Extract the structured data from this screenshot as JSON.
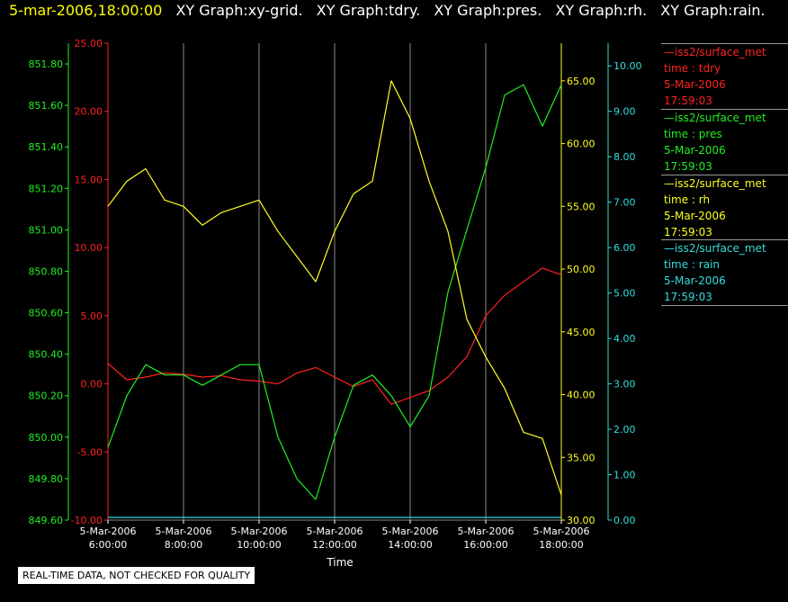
{
  "header": {
    "timestamp": "5-mar-2006,18:00:00",
    "graph_titles": [
      "XY Graph:xy-grid.",
      "XY Graph:tdry.",
      "XY Graph:pres.",
      "XY Graph:rh.",
      "XY Graph:rain."
    ]
  },
  "legend": [
    {
      "source": "iss2/surface_met",
      "field": "time : tdry",
      "date": "5-Mar-2006",
      "time": "17:59:03",
      "color": "#ff2020"
    },
    {
      "source": "iss2/surface_met",
      "field": "time : pres",
      "date": "5-Mar-2006",
      "time": "17:59:03",
      "color": "#22ee22"
    },
    {
      "source": "iss2/surface_met",
      "field": "time : rh",
      "date": "5-Mar-2006",
      "time": "17:59:03",
      "color": "#ffff22"
    },
    {
      "source": "iss2/surface_met",
      "field": "time : rain",
      "date": "5-Mar-2006",
      "time": "17:59:03",
      "color": "#33dddd"
    }
  ],
  "note": "REAL-TIME DATA, NOT CHECKED FOR QUALITY",
  "chart_data": {
    "type": "line",
    "xlabel": "Time",
    "x_ticks": [
      {
        "date": "5-Mar-2006",
        "time": "6:00:00"
      },
      {
        "date": "5-Mar-2006",
        "time": "8:00:00"
      },
      {
        "date": "5-Mar-2006",
        "time": "10:00:00"
      },
      {
        "date": "5-Mar-2006",
        "time": "12:00:00"
      },
      {
        "date": "5-Mar-2006",
        "time": "14:00:00"
      },
      {
        "date": "5-Mar-2006",
        "time": "16:00:00"
      },
      {
        "date": "5-Mar-2006",
        "time": "18:00:00"
      }
    ],
    "xlim": [
      "5-Mar-2006 6:00:00",
      "5-Mar-2006 18:00:00"
    ],
    "x": [
      "6:00",
      "6:30",
      "7:00",
      "7:30",
      "8:00",
      "8:30",
      "9:00",
      "9:30",
      "10:00",
      "10:30",
      "11:00",
      "11:30",
      "12:00",
      "12:30",
      "13:00",
      "13:30",
      "14:00",
      "14:30",
      "15:00",
      "15:30",
      "16:00",
      "16:30",
      "17:00",
      "17:30",
      "18:00"
    ],
    "grid": "vertical",
    "axes": [
      {
        "id": "tdry",
        "side": "left-inner",
        "color": "#ff2020",
        "ylim": [
          -10,
          25
        ],
        "ticks": [
          "-10.00",
          "-5.00",
          "0.00",
          "5.00",
          "10.00",
          "15.00",
          "20.00",
          "25.00"
        ]
      },
      {
        "id": "pres",
        "side": "left-outer",
        "color": "#22ee22",
        "ylim": [
          849.6,
          851.9
        ],
        "ticks": [
          "849.60",
          "849.80",
          "850.00",
          "850.20",
          "850.40",
          "850.60",
          "850.80",
          "851.00",
          "851.20",
          "851.40",
          "851.60",
          "851.80"
        ]
      },
      {
        "id": "rh",
        "side": "right-inner",
        "color": "#ffff22",
        "ylim": [
          30,
          68
        ],
        "ticks": [
          "30.00",
          "35.00",
          "40.00",
          "45.00",
          "50.00",
          "55.00",
          "60.00",
          "65.00"
        ]
      },
      {
        "id": "rain",
        "side": "right-outer",
        "color": "#33dddd",
        "ylim": [
          0,
          10.5
        ],
        "ticks": [
          "0.00",
          "1.00",
          "2.00",
          "3.00",
          "4.00",
          "5.00",
          "6.00",
          "7.00",
          "8.00",
          "9.00",
          "10.00"
        ]
      }
    ],
    "series": [
      {
        "axis": "tdry",
        "color": "#ff2020",
        "values": [
          1.5,
          0.3,
          0.5,
          0.8,
          0.7,
          0.5,
          0.6,
          0.3,
          0.2,
          0.0,
          0.8,
          1.2,
          0.5,
          -0.2,
          0.3,
          -1.5,
          -1.0,
          -0.5,
          0.5,
          2.0,
          5.0,
          6.5,
          7.5,
          8.5,
          8.0
        ]
      },
      {
        "axis": "pres",
        "color": "#22ee22",
        "values": [
          849.95,
          850.2,
          850.35,
          850.3,
          850.3,
          850.25,
          850.3,
          850.35,
          850.35,
          850.0,
          849.8,
          849.7,
          850.0,
          850.25,
          850.3,
          850.2,
          850.05,
          850.2,
          850.7,
          851.0,
          851.3,
          851.65,
          851.7,
          851.5,
          851.7
        ]
      },
      {
        "axis": "rh",
        "color": "#ffff22",
        "values": [
          55.0,
          57.0,
          58.0,
          55.5,
          55.0,
          53.5,
          54.5,
          55.0,
          55.5,
          53.0,
          51.0,
          49.0,
          53.0,
          56.0,
          57.0,
          65.0,
          62.0,
          57.0,
          53.0,
          46.0,
          43.0,
          40.5,
          37.0,
          36.5,
          32.0
        ]
      },
      {
        "axis": "rain",
        "color": "#33dddd",
        "values": [
          0,
          0,
          0,
          0,
          0,
          0,
          0,
          0,
          0,
          0,
          0,
          0,
          0,
          0,
          0,
          0,
          0,
          0,
          0,
          0,
          0,
          0,
          0,
          0,
          0
        ]
      }
    ]
  }
}
